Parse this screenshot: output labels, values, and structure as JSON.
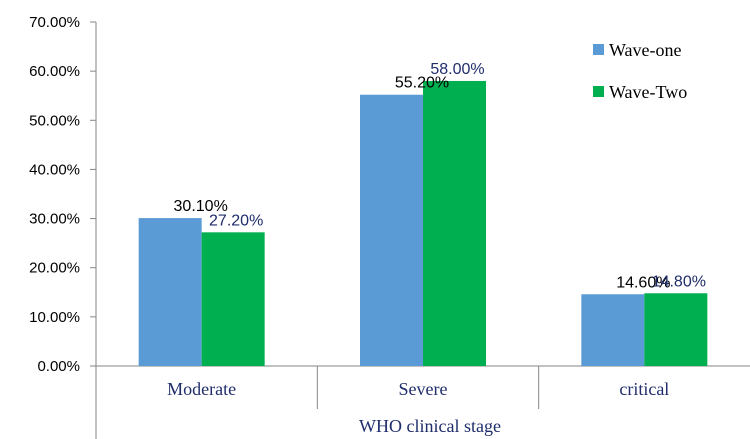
{
  "chart_data": {
    "type": "bar",
    "title": "",
    "xlabel": "WHO clinical stage",
    "ylabel": "",
    "categories": [
      "Moderate",
      "Severe",
      "critical"
    ],
    "ylim": [
      0,
      70
    ],
    "yticks": [
      0,
      10,
      20,
      30,
      40,
      50,
      60,
      70
    ],
    "ytick_labels": [
      "0.00%",
      "10.00%",
      "20.00%",
      "30.00%",
      "40.00%",
      "50.00%",
      "60.00%",
      "70.00%"
    ],
    "series": [
      {
        "name": "Wave-one",
        "color": "#5B9BD5",
        "label_color": "#000000",
        "values": [
          30.1,
          55.2,
          14.6
        ],
        "labels": [
          "30.10%",
          "55.20%",
          "14.60%"
        ]
      },
      {
        "name": "Wave-Two",
        "color": "#00B050",
        "label_color": "#1f2d6b",
        "values": [
          27.2,
          58.0,
          14.8
        ],
        "labels": [
          "27.20%",
          "58.00%",
          "14.80%"
        ]
      }
    ],
    "grid": false,
    "legend_position": "top-right"
  }
}
